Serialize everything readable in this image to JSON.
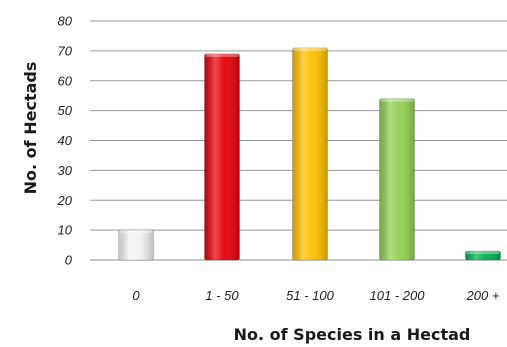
{
  "chart_data": {
    "type": "bar",
    "categories": [
      "0",
      "1 - 50",
      "51 - 100",
      "101 - 200",
      "200 +"
    ],
    "values": [
      10,
      69,
      71,
      54,
      3
    ],
    "bar_colors": [
      "#f2f2f2",
      "#e8000b",
      "#ffc000",
      "#92d050",
      "#00b050"
    ],
    "xlabel": "No. of Species in a Hectad",
    "ylabel": "No. of Hectads",
    "ylim": [
      0,
      80
    ],
    "yticks": [
      0,
      10,
      20,
      30,
      40,
      50,
      60,
      70,
      80
    ],
    "grid": true,
    "legend": "none"
  }
}
